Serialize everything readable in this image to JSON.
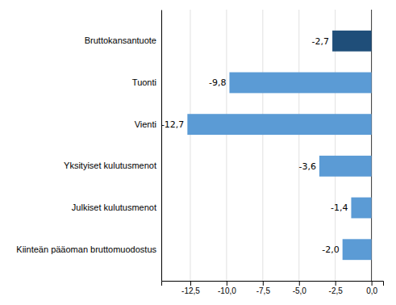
{
  "chart_data": {
    "type": "bar",
    "orientation": "horizontal",
    "categories": [
      "Kiinteän pääoman bruttomuodostus",
      "Julkiset kulutusmenot",
      "Yksityiset kulutusmenot",
      "Vienti",
      "Tuonti",
      "Bruttokansantuote"
    ],
    "values": [
      -2.0,
      -1.4,
      -3.6,
      -12.7,
      -9.8,
      -2.7
    ],
    "value_labels": [
      "-2,0",
      "-1,4",
      "-3,6",
      "-12,7",
      "-9,8",
      "-2,7"
    ],
    "data_labels": true,
    "colors": [
      "#5b9bd5",
      "#5b9bd5",
      "#5b9bd5",
      "#5b9bd5",
      "#5b9bd5",
      "#1f4e79"
    ],
    "xlim": [
      -14.5,
      0.8
    ],
    "xticks": [
      {
        "value": -12.5,
        "label": "-12,5"
      },
      {
        "value": -10.0,
        "label": "-10,0"
      },
      {
        "value": -7.5,
        "label": "-7,5"
      },
      {
        "value": -5.0,
        "label": "-5,0"
      },
      {
        "value": -2.5,
        "label": "-2,5"
      },
      {
        "value": 0.0,
        "label": "0,0"
      }
    ],
    "grid": true
  }
}
